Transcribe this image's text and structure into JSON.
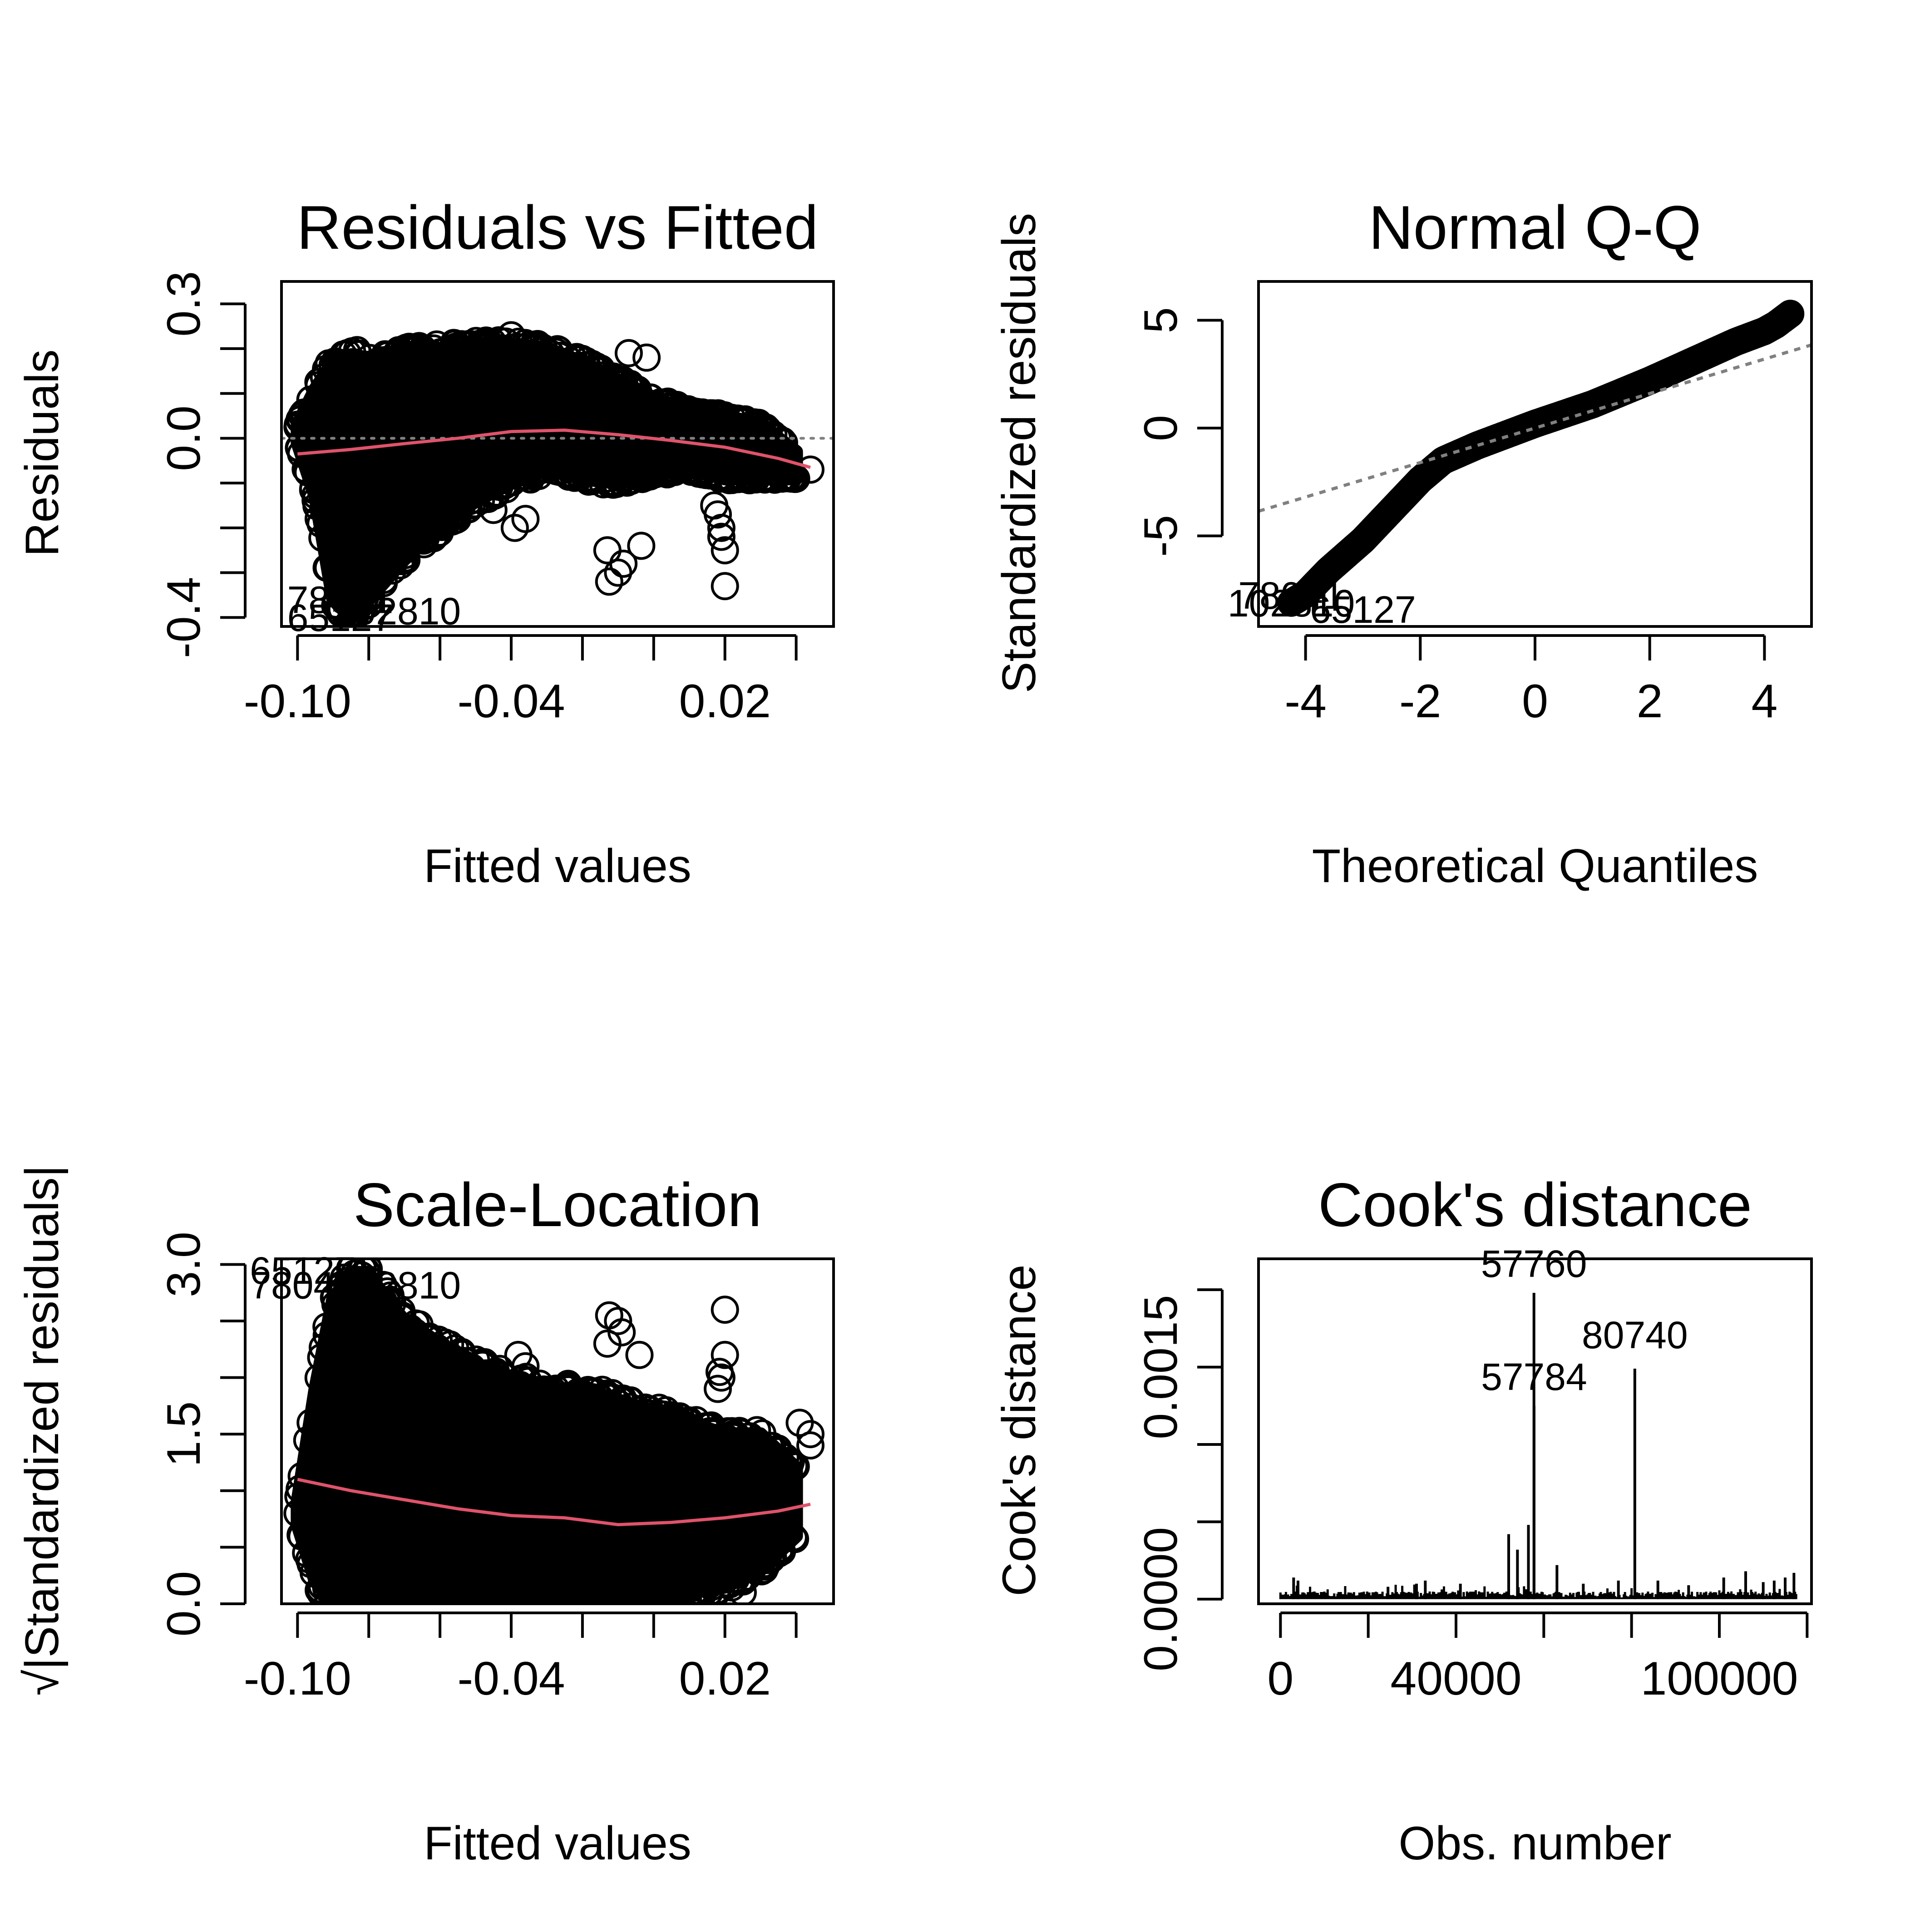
{
  "colors": {
    "points": "#000000",
    "smoother": "#DF536B",
    "reference_line": "#808080",
    "background": "#FFFFFF"
  },
  "chart_data": [
    {
      "type": "scatter",
      "title": "Residuals vs Fitted",
      "xlabel": "Fitted values",
      "ylabel": "Residuals",
      "xlim": [
        -0.1045,
        0.0505
      ],
      "ylim": [
        -0.42,
        0.35
      ],
      "xticks": [
        -0.1,
        -0.08,
        -0.06,
        -0.04,
        -0.02,
        0.0,
        0.02,
        0.04
      ],
      "xtick_labels": [
        "-0.10",
        "-0.04",
        "0.02"
      ],
      "xtick_labeled_values": [
        -0.1,
        -0.04,
        0.02
      ],
      "yticks": [
        -0.4,
        -0.3,
        -0.2,
        -0.1,
        0.0,
        0.1,
        0.2,
        0.3
      ],
      "ytick_labels": [
        "-0.4",
        "0.0",
        "0.3"
      ],
      "ytick_labeled_values": [
        -0.4,
        0.0,
        0.3
      ],
      "reference_line": {
        "y": 0.0,
        "style": "dotted"
      },
      "smoother": {
        "x": [
          -0.1,
          -0.085,
          -0.07,
          -0.055,
          -0.04,
          -0.025,
          -0.01,
          0.005,
          0.02,
          0.035,
          0.044
        ],
        "y": [
          -0.035,
          -0.025,
          -0.012,
          0.0,
          0.015,
          0.018,
          0.008,
          -0.005,
          -0.02,
          -0.045,
          -0.065
        ]
      },
      "point_cloud": {
        "x": [
          -0.1,
          -0.095,
          -0.09,
          -0.085,
          -0.08,
          -0.07,
          -0.06,
          -0.05,
          -0.04,
          -0.03,
          -0.02,
          -0.01,
          0.0,
          0.01,
          0.02,
          0.03,
          0.04
        ],
        "upper": [
          0.03,
          0.11,
          0.17,
          0.18,
          0.18,
          0.19,
          0.2,
          0.21,
          0.21,
          0.2,
          0.17,
          0.13,
          0.09,
          0.06,
          0.05,
          0.03,
          -0.03
        ],
        "lower": [
          -0.01,
          -0.13,
          -0.36,
          -0.4,
          -0.36,
          -0.27,
          -0.2,
          -0.14,
          -0.1,
          -0.07,
          -0.09,
          -0.1,
          -0.08,
          -0.07,
          -0.09,
          -0.09,
          -0.09
        ]
      },
      "outliers": [
        {
          "x": 0.02,
          "y": -0.33
        },
        {
          "x": 0.02,
          "y": -0.25
        },
        {
          "x": 0.019,
          "y": -0.2
        },
        {
          "x": 0.018,
          "y": -0.17
        },
        {
          "x": 0.019,
          "y": -0.22
        },
        {
          "x": 0.017,
          "y": -0.15
        },
        {
          "x": -0.0125,
          "y": -0.32
        },
        {
          "x": -0.0085,
          "y": -0.28
        },
        {
          "x": -0.013,
          "y": -0.25
        },
        {
          "x": -0.01,
          "y": -0.3
        },
        {
          "x": -0.0035,
          "y": -0.24
        },
        {
          "x": -0.036,
          "y": -0.18
        },
        {
          "x": -0.039,
          "y": -0.2
        },
        {
          "x": -0.045,
          "y": -0.16
        },
        {
          "x": -0.04,
          "y": 0.23
        },
        {
          "x": -0.04,
          "y": 0.19
        },
        {
          "x": -0.033,
          "y": 0.18
        },
        {
          "x": -0.027,
          "y": 0.17
        },
        {
          "x": -0.007,
          "y": 0.19
        },
        {
          "x": -0.002,
          "y": 0.18
        },
        {
          "x": 0.032,
          "y": 0.02
        },
        {
          "x": 0.044,
          "y": -0.07
        },
        {
          "x": 0.04,
          "y": -0.09
        },
        {
          "x": -0.1,
          "y": 0.025
        },
        {
          "x": -0.086,
          "y": 0.19
        },
        {
          "x": -0.07,
          "y": 0.2
        }
      ],
      "point_labels": [
        {
          "text": "78041",
          "x": -0.088,
          "y": -0.37
        },
        {
          "text": "65127",
          "x": -0.088,
          "y": -0.41
        },
        {
          "text": "102810",
          "x": -0.072,
          "y": -0.395
        }
      ]
    },
    {
      "type": "scatter",
      "title": "Normal Q-Q",
      "xlabel": "Theoretical Quantiles",
      "ylabel": "Standardized residuals",
      "xlim": [
        -4.82,
        4.82
      ],
      "ylim": [
        -9.2,
        6.8
      ],
      "xticks": [
        -4,
        -2,
        0,
        2,
        4
      ],
      "xtick_labels": [
        "-4",
        "-2",
        "0",
        "2",
        "4"
      ],
      "xtick_labeled_values": [
        -4,
        -2,
        0,
        2,
        4
      ],
      "yticks": [
        -5,
        0,
        5
      ],
      "ytick_labels": [
        "-5",
        "0",
        "5"
      ],
      "ytick_labeled_values": [
        -5,
        0,
        5
      ],
      "reference_line": {
        "intercept": 0.0,
        "slope": 0.8,
        "style": "dotted"
      },
      "qq_curve": {
        "x": [
          -4.25,
          -4.0,
          -3.6,
          -3.0,
          -2.5,
          -2.0,
          -1.6,
          -1.0,
          0.0,
          1.0,
          2.0,
          3.0,
          3.5,
          4.0,
          4.2,
          4.45
        ],
        "y": [
          -8.1,
          -7.7,
          -6.6,
          -5.2,
          -3.8,
          -2.4,
          -1.5,
          -0.8,
          0.2,
          1.1,
          2.2,
          3.4,
          4.0,
          4.5,
          4.8,
          5.3
        ]
      },
      "point_labels": [
        {
          "text": "78041",
          "x": -4.25,
          "y": -7.75
        },
        {
          "text": "102810",
          "x": -4.25,
          "y": -8.1
        },
        {
          "text": "65127",
          "x": -3.0,
          "y": -8.4
        }
      ]
    },
    {
      "type": "scatter",
      "title": "Scale-Location",
      "xlabel": "Fitted values",
      "ylabel": "√|Standardized residuals|",
      "xlim": [
        -0.1045,
        0.0505
      ],
      "ylim": [
        0.0,
        3.05
      ],
      "xticks": [
        -0.1,
        -0.08,
        -0.06,
        -0.04,
        -0.02,
        0.0,
        0.02,
        0.04
      ],
      "xtick_labels": [
        "-0.10",
        "-0.04",
        "0.02"
      ],
      "xtick_labeled_values": [
        -0.1,
        -0.04,
        0.02
      ],
      "yticks": [
        0.0,
        0.5,
        1.0,
        1.5,
        2.0,
        2.5,
        3.0
      ],
      "ytick_labels": [
        "0.0",
        "1.5",
        "3.0"
      ],
      "ytick_labeled_values": [
        0.0,
        1.5,
        3.0
      ],
      "smoother": {
        "x": [
          -0.1,
          -0.085,
          -0.07,
          -0.055,
          -0.04,
          -0.025,
          -0.01,
          0.005,
          0.02,
          0.035,
          0.044
        ],
        "y": [
          1.1,
          1.0,
          0.92,
          0.84,
          0.78,
          0.76,
          0.7,
          0.72,
          0.76,
          0.82,
          0.88
        ]
      },
      "point_cloud": {
        "x": [
          -0.1,
          -0.095,
          -0.09,
          -0.085,
          -0.08,
          -0.07,
          -0.06,
          -0.05,
          -0.04,
          -0.03,
          -0.02,
          -0.01,
          0.0,
          0.01,
          0.02,
          0.03,
          0.04
        ],
        "upper": [
          0.9,
          1.9,
          2.7,
          2.9,
          2.9,
          2.5,
          2.3,
          2.1,
          2.0,
          1.9,
          1.9,
          1.8,
          1.7,
          1.6,
          1.5,
          1.5,
          1.2
        ],
        "lower": [
          0.7,
          0.2,
          0.0,
          0.0,
          0.0,
          0.0,
          0.0,
          0.0,
          0.0,
          0.0,
          0.0,
          0.0,
          0.0,
          0.1,
          0.15,
          0.3,
          0.6
        ]
      },
      "outliers": [
        {
          "x": 0.02,
          "y": 2.6
        },
        {
          "x": 0.02,
          "y": 2.2
        },
        {
          "x": 0.019,
          "y": 2.0
        },
        {
          "x": 0.018,
          "y": 1.9
        },
        {
          "x": 0.0185,
          "y": 2.05
        },
        {
          "x": -0.0125,
          "y": 2.55
        },
        {
          "x": -0.009,
          "y": 2.4
        },
        {
          "x": -0.013,
          "y": 2.3
        },
        {
          "x": -0.01,
          "y": 2.5
        },
        {
          "x": -0.004,
          "y": 2.2
        },
        {
          "x": -0.036,
          "y": 2.1
        },
        {
          "x": -0.038,
          "y": 2.2
        },
        {
          "x": -0.067,
          "y": 2.4
        },
        {
          "x": 0.044,
          "y": 1.4
        },
        {
          "x": 0.044,
          "y": 1.5
        },
        {
          "x": 0.041,
          "y": 1.6
        },
        {
          "x": -0.1,
          "y": 0.8
        },
        {
          "x": 0.025,
          "y": 0.1
        }
      ],
      "point_labels": [
        {
          "text": "65127",
          "x": -0.0985,
          "y": 2.95
        },
        {
          "text": "78041",
          "x": -0.0985,
          "y": 2.82
        },
        {
          "text": "102810",
          "x": -0.072,
          "y": 2.82
        }
      ]
    },
    {
      "type": "bar",
      "title": "Cook's distance",
      "xlabel": "Obs. number",
      "ylabel": "Cook's distance",
      "xlim": [
        -5000,
        121000
      ],
      "ylim": [
        -3e-05,
        0.0022
      ],
      "xticks": [
        0,
        20000,
        40000,
        60000,
        80000,
        100000,
        120000
      ],
      "xtick_labels": [
        "0",
        "40000",
        "100000"
      ],
      "xtick_labeled_values": [
        0,
        40000,
        100000
      ],
      "yticks": [
        0.0,
        0.0005,
        0.001,
        0.0015,
        0.002
      ],
      "ytick_labels": [
        "0.0000",
        "0.0015"
      ],
      "ytick_labeled_values": [
        0.0,
        0.0015
      ],
      "bars": [
        {
          "x": 57760,
          "y": 0.00198
        },
        {
          "x": 57784,
          "y": 0.00125
        },
        {
          "x": 80740,
          "y": 0.00149
        },
        {
          "x": 56500,
          "y": 0.00048
        },
        {
          "x": 52000,
          "y": 0.00042
        },
        {
          "x": 54000,
          "y": 0.00032
        },
        {
          "x": 63000,
          "y": 0.00022
        },
        {
          "x": 3000,
          "y": 0.00014
        },
        {
          "x": 4000,
          "y": 0.00012
        },
        {
          "x": 31000,
          "y": 0.0001
        },
        {
          "x": 33000,
          "y": 0.00012
        },
        {
          "x": 41000,
          "y": 0.0001
        },
        {
          "x": 24500,
          "y": 8e-05
        },
        {
          "x": 69000,
          "y": 0.0001
        },
        {
          "x": 77000,
          "y": 0.00012
        },
        {
          "x": 86000,
          "y": 0.00012
        },
        {
          "x": 93000,
          "y": 9e-05
        },
        {
          "x": 101000,
          "y": 0.00014
        },
        {
          "x": 106000,
          "y": 0.00018
        },
        {
          "x": 110000,
          "y": 0.00011
        },
        {
          "x": 112500,
          "y": 0.00012
        },
        {
          "x": 115000,
          "y": 0.00014
        },
        {
          "x": 117000,
          "y": 0.00017
        }
      ],
      "bar_labels": [
        {
          "text": "57760",
          "x": 57760,
          "y": 0.00198
        },
        {
          "text": "57784",
          "x": 57784,
          "y": 0.00125
        },
        {
          "text": "80740",
          "x": 80740,
          "y": 0.00149
        }
      ]
    }
  ]
}
